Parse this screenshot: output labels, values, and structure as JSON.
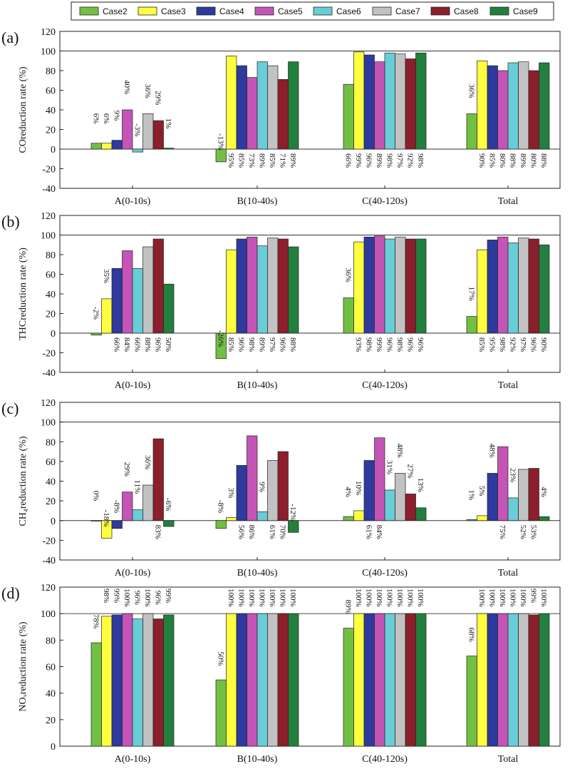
{
  "legend": [
    {
      "name": "Case2",
      "color": "#72c043"
    },
    {
      "name": "Case3",
      "color": "#ffff40"
    },
    {
      "name": "Case4",
      "color": "#2e3a9e"
    },
    {
      "name": "Case5",
      "color": "#c455b6"
    },
    {
      "name": "Case6",
      "color": "#69cdd8"
    },
    {
      "name": "Case7",
      "color": "#c2c2c2"
    },
    {
      "name": "Case8",
      "color": "#8b1f2b"
    },
    {
      "name": "Case9",
      "color": "#237f3e"
    }
  ],
  "chart_data": [
    {
      "type": "bar",
      "panel_label": "(a)",
      "ylabel": "COreduction rate (%)",
      "ylim": [
        -40,
        120
      ],
      "yticks": [
        -40,
        -20,
        0,
        20,
        40,
        60,
        80,
        100,
        120
      ],
      "reference_line": 100,
      "categories": [
        "A(0-10s)",
        "B(10-40s)",
        "C(40-120s)",
        "Total"
      ],
      "series": [
        {
          "name": "Case2",
          "values": [
            6,
            -13,
            66,
            36
          ],
          "labels": [
            "6%",
            "-13%",
            "66%",
            "36%"
          ]
        },
        {
          "name": "Case3",
          "values": [
            6,
            95,
            99,
            90
          ],
          "labels": [
            "6%",
            "95%",
            "99%",
            "90%"
          ]
        },
        {
          "name": "Case4",
          "values": [
            9,
            85,
            96,
            85
          ],
          "labels": [
            "9%",
            "85%",
            "96%",
            "85%"
          ]
        },
        {
          "name": "Case5",
          "values": [
            40,
            73,
            89,
            80
          ],
          "labels": [
            "40%",
            "73%",
            "89%",
            "80%"
          ]
        },
        {
          "name": "Case6",
          "values": [
            -3,
            89,
            98,
            88
          ],
          "labels": [
            "-3%",
            "89%",
            "98%",
            "88%"
          ]
        },
        {
          "name": "Case7",
          "values": [
            36,
            85,
            97,
            89
          ],
          "labels": [
            "36%",
            "85%",
            "97%",
            "89%"
          ]
        },
        {
          "name": "Case8",
          "values": [
            29,
            71,
            92,
            80
          ],
          "labels": [
            "29%",
            "71%",
            "92%",
            "80%"
          ]
        },
        {
          "name": "Case9",
          "values": [
            1,
            89,
            98,
            88
          ],
          "labels": [
            "1%",
            "89%",
            "98%",
            "88%"
          ]
        }
      ]
    },
    {
      "type": "bar",
      "panel_label": "(b)",
      "ylabel": "THCreduction rate (%)",
      "ylim": [
        -40,
        120
      ],
      "yticks": [
        -40,
        -20,
        0,
        20,
        40,
        60,
        80,
        100,
        120
      ],
      "reference_line": 100,
      "categories": [
        "A(0-10s)",
        "B(10-40s)",
        "C(40-120s)",
        "Total"
      ],
      "series": [
        {
          "name": "Case2",
          "values": [
            -2,
            -26,
            36,
            17
          ],
          "labels": [
            "-2%",
            "-26%",
            "36%",
            "17%"
          ]
        },
        {
          "name": "Case3",
          "values": [
            35,
            85,
            93,
            85
          ],
          "labels": [
            "35%",
            "85%",
            "93%",
            "85%"
          ]
        },
        {
          "name": "Case4",
          "values": [
            66,
            96,
            98,
            95
          ],
          "labels": [
            "66%",
            "96%",
            "98%",
            "95%"
          ]
        },
        {
          "name": "Case5",
          "values": [
            84,
            98,
            99,
            98
          ],
          "labels": [
            "84%",
            "98%",
            "99%",
            "98%"
          ]
        },
        {
          "name": "Case6",
          "values": [
            66,
            89,
            96,
            92
          ],
          "labels": [
            "66%",
            "89%",
            "96%",
            "92%"
          ]
        },
        {
          "name": "Case7",
          "values": [
            88,
            97,
            98,
            97
          ],
          "labels": [
            "88%",
            "97%",
            "98%",
            "97%"
          ]
        },
        {
          "name": "Case8",
          "values": [
            96,
            96,
            96,
            96
          ],
          "labels": [
            "96%",
            "96%",
            "96%",
            "96%"
          ]
        },
        {
          "name": "Case9",
          "values": [
            50,
            88,
            96,
            90
          ],
          "labels": [
            "50%",
            "88%",
            "96%",
            "90%"
          ]
        }
      ]
    },
    {
      "type": "bar",
      "panel_label": "(c)",
      "ylabel": "CH₄reduction rate (%)",
      "ylim": [
        -40,
        120
      ],
      "yticks": [
        -40,
        -20,
        0,
        20,
        40,
        60,
        80,
        100,
        120
      ],
      "reference_line": 100,
      "categories": [
        "A(0-10s)",
        "B(10-40s)",
        "C(40-120s)",
        "Total"
      ],
      "series": [
        {
          "name": "Case2",
          "values": [
            0,
            -8,
            4,
            1
          ],
          "labels": [
            "0%",
            "-8%",
            "4%",
            "1%"
          ]
        },
        {
          "name": "Case3",
          "values": [
            -18,
            3,
            10,
            5
          ],
          "labels": [
            "-18%",
            "3%",
            "10%",
            "5%"
          ]
        },
        {
          "name": "Case4",
          "values": [
            -8,
            56,
            61,
            48
          ],
          "labels": [
            "-8%",
            "56%",
            "61%",
            "48%"
          ]
        },
        {
          "name": "Case5",
          "values": [
            29,
            86,
            84,
            75
          ],
          "labels": [
            "29%",
            "86%",
            "84%",
            "75%"
          ]
        },
        {
          "name": "Case6",
          "values": [
            11,
            9,
            31,
            23
          ],
          "labels": [
            "11%",
            "9%",
            "31%",
            "23%"
          ]
        },
        {
          "name": "Case7",
          "values": [
            36,
            61,
            48,
            52
          ],
          "labels": [
            "36%",
            "61%",
            "48%",
            "52%"
          ]
        },
        {
          "name": "Case8",
          "values": [
            83,
            70,
            27,
            53
          ],
          "labels": [
            "83%",
            "70%",
            "27%",
            "53%"
          ]
        },
        {
          "name": "Case9",
          "values": [
            -6,
            -12,
            13,
            4
          ],
          "labels": [
            "-6%",
            "-12%",
            "13%",
            "4%"
          ]
        }
      ]
    },
    {
      "type": "bar",
      "panel_label": "(d)",
      "ylabel": "NOₓreduction rate (%)",
      "ylim": [
        0,
        120
      ],
      "yticks": [
        0,
        20,
        40,
        60,
        80,
        100,
        120
      ],
      "reference_line": 100,
      "categories": [
        "A(0-10s)",
        "B(10-40s)",
        "C(40-120s)",
        "Total"
      ],
      "series": [
        {
          "name": "Case2",
          "values": [
            78,
            50,
            89,
            68
          ],
          "labels": [
            "78%",
            "50%",
            "89%",
            "68%"
          ]
        },
        {
          "name": "Case3",
          "values": [
            98,
            100,
            100,
            100
          ],
          "labels": [
            "98%",
            "100%",
            "100%",
            "100%"
          ]
        },
        {
          "name": "Case4",
          "values": [
            99,
            100,
            100,
            100
          ],
          "labels": [
            "99%",
            "100%",
            "100%",
            "100%"
          ]
        },
        {
          "name": "Case5",
          "values": [
            100,
            100,
            100,
            100
          ],
          "labels": [
            "100%",
            "100%",
            "100%",
            "100%"
          ]
        },
        {
          "name": "Case6",
          "values": [
            96,
            100,
            100,
            100
          ],
          "labels": [
            "96%",
            "100%",
            "100%",
            "100%"
          ]
        },
        {
          "name": "Case7",
          "values": [
            100,
            100,
            100,
            100
          ],
          "labels": [
            "100%",
            "100%",
            "100%",
            "100%"
          ]
        },
        {
          "name": "Case8",
          "values": [
            96,
            100,
            100,
            99
          ],
          "labels": [
            "96%",
            "100%",
            "100%",
            "99%"
          ]
        },
        {
          "name": "Case9",
          "values": [
            99,
            100,
            100,
            100
          ],
          "labels": [
            "99%",
            "100%",
            "100%",
            "100%"
          ]
        }
      ]
    }
  ]
}
